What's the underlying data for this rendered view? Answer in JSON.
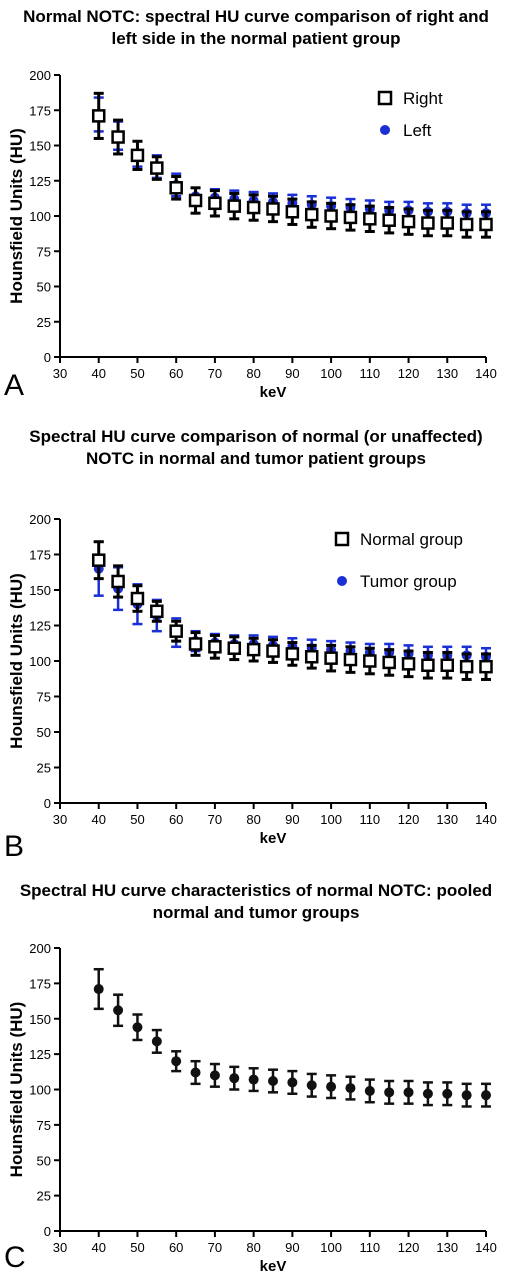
{
  "chart_data": [
    {
      "type": "scatter",
      "panel_label": "A",
      "title": "Normal  NOTC: spectral HU curve comparison of right and left side in the normal patient group",
      "xlabel": "keV",
      "ylabel": "Hounsfield Units (HU)",
      "xlim": [
        30,
        140
      ],
      "ylim": [
        0,
        200
      ],
      "xticks": [
        30,
        40,
        50,
        60,
        70,
        80,
        90,
        100,
        110,
        120,
        130,
        140
      ],
      "yticks": [
        0,
        25,
        50,
        75,
        100,
        125,
        150,
        175,
        200
      ],
      "grid": false,
      "legend": "top-right",
      "x": [
        40,
        45,
        50,
        55,
        60,
        65,
        70,
        75,
        80,
        85,
        90,
        95,
        100,
        105,
        110,
        115,
        120,
        125,
        130,
        135,
        140
      ],
      "series": [
        {
          "name": "Right",
          "marker": "open-square",
          "color": "#000000",
          "values": [
            171,
            156,
            143,
            134,
            120,
            111,
            109,
            107,
            106,
            105,
            103,
            101,
            100,
            99,
            98,
            97,
            96,
            95,
            95,
            94,
            94
          ],
          "errors": [
            16,
            12,
            10,
            8,
            8,
            9,
            9,
            9,
            9,
            9,
            9,
            9,
            9,
            9,
            9,
            9,
            9,
            9,
            9,
            9,
            9
          ]
        },
        {
          "name": "Left",
          "marker": "filled-circle",
          "color": "#1a2fd6",
          "values": [
            172,
            157,
            144,
            135,
            122,
            114,
            113,
            112,
            111,
            110,
            109,
            108,
            107,
            106,
            105,
            104,
            104,
            103,
            103,
            102,
            102
          ],
          "errors": [
            12,
            10,
            9,
            8,
            8,
            6,
            6,
            6,
            6,
            6,
            6,
            6,
            6,
            6,
            6,
            6,
            6,
            6,
            6,
            6,
            6
          ]
        }
      ]
    },
    {
      "type": "scatter",
      "panel_label": "B",
      "title": "Spectral HU curve comparison of normal (or unaffected) NOTC in normal and tumor patient groups",
      "xlabel": "keV",
      "ylabel": "Hounsfield Units (HU)",
      "xlim": [
        30,
        140
      ],
      "ylim": [
        0,
        200
      ],
      "xticks": [
        30,
        40,
        50,
        60,
        70,
        80,
        90,
        100,
        110,
        120,
        130,
        140
      ],
      "yticks": [
        0,
        25,
        50,
        75,
        100,
        125,
        150,
        175,
        200
      ],
      "grid": false,
      "legend": "top-right",
      "x": [
        40,
        45,
        50,
        55,
        60,
        65,
        70,
        75,
        80,
        85,
        90,
        95,
        100,
        105,
        110,
        115,
        120,
        125,
        130,
        135,
        140
      ],
      "series": [
        {
          "name": "Normal group",
          "marker": "open-square",
          "color": "#000000",
          "values": [
            171,
            156,
            144,
            135,
            121,
            112,
            110,
            109,
            108,
            107,
            105,
            103,
            102,
            101,
            100,
            99,
            98,
            97,
            97,
            96,
            96
          ],
          "errors": [
            13,
            11,
            9,
            7,
            7,
            8,
            8,
            8,
            8,
            8,
            8,
            8,
            9,
            9,
            9,
            9,
            9,
            9,
            9,
            9,
            9
          ]
        },
        {
          "name": "Tumor group",
          "marker": "filled-circle",
          "color": "#1a2fd6",
          "values": [
            165,
            151,
            140,
            132,
            120,
            114,
            113,
            112,
            112,
            111,
            110,
            109,
            108,
            107,
            106,
            106,
            105,
            104,
            104,
            104,
            103
          ],
          "errors": [
            19,
            15,
            14,
            11,
            10,
            7,
            6,
            6,
            6,
            6,
            6,
            6,
            6,
            6,
            6,
            6,
            6,
            6,
            6,
            6,
            6
          ]
        }
      ]
    },
    {
      "type": "scatter",
      "panel_label": "C",
      "title": "Spectral HU curve characteristics of normal NOTC: pooled normal and tumor groups",
      "xlabel": "keV",
      "ylabel": "Hounsfield Units (HU)",
      "xlim": [
        30,
        140
      ],
      "ylim": [
        0,
        200
      ],
      "xticks": [
        30,
        40,
        50,
        60,
        70,
        80,
        90,
        100,
        110,
        120,
        130,
        140
      ],
      "yticks": [
        0,
        25,
        50,
        75,
        100,
        125,
        150,
        175,
        200
      ],
      "grid": false,
      "legend": "none",
      "x": [
        40,
        45,
        50,
        55,
        60,
        65,
        70,
        75,
        80,
        85,
        90,
        95,
        100,
        105,
        110,
        115,
        120,
        125,
        130,
        135,
        140
      ],
      "series": [
        {
          "name": "",
          "marker": "filled-circle",
          "color": "#111111",
          "values": [
            171,
            156,
            144,
            134,
            120,
            112,
            110,
            108,
            107,
            106,
            105,
            103,
            102,
            101,
            99,
            98,
            98,
            97,
            97,
            96,
            96
          ],
          "errors": [
            14,
            11,
            9,
            8,
            7,
            8,
            8,
            8,
            8,
            8,
            8,
            8,
            8,
            8,
            8,
            8,
            8,
            8,
            8,
            8,
            8
          ]
        }
      ]
    }
  ]
}
